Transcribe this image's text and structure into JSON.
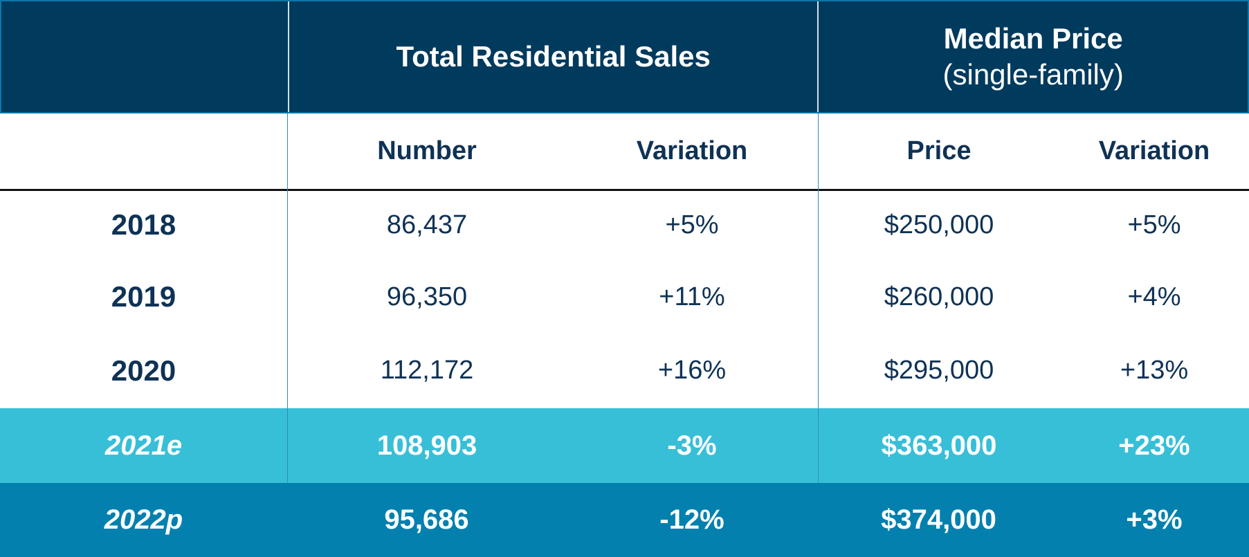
{
  "header": {
    "group1": "Total Residential Sales",
    "group2_title": "Median Price",
    "group2_subtitle": "(single-family)"
  },
  "subheader": {
    "col1": "Number",
    "col2": "Variation",
    "col3": "Price",
    "col4": "Variation"
  },
  "rows": [
    {
      "year": "2018",
      "number": "86,437",
      "number_var": "+5%",
      "price": "$250,000",
      "price_var": "+5%"
    },
    {
      "year": "2019",
      "number": "96,350",
      "number_var": "+11%",
      "price": "$260,000",
      "price_var": "+4%"
    },
    {
      "year": "2020",
      "number": "112,172",
      "number_var": "+16%",
      "price": "$295,000",
      "price_var": "+13%"
    },
    {
      "year": "2021e",
      "number": "108,903",
      "number_var": "-3%",
      "price": "$363,000",
      "price_var": "+23%"
    },
    {
      "year": "2022p",
      "number": "95,686",
      "number_var": "-12%",
      "price": "$374,000",
      "price_var": "+3%"
    }
  ],
  "colors": {
    "header": "#003A5D",
    "estimate_row": "#38BFD8",
    "projection_row": "#0380AE",
    "text": "#0F3255"
  }
}
